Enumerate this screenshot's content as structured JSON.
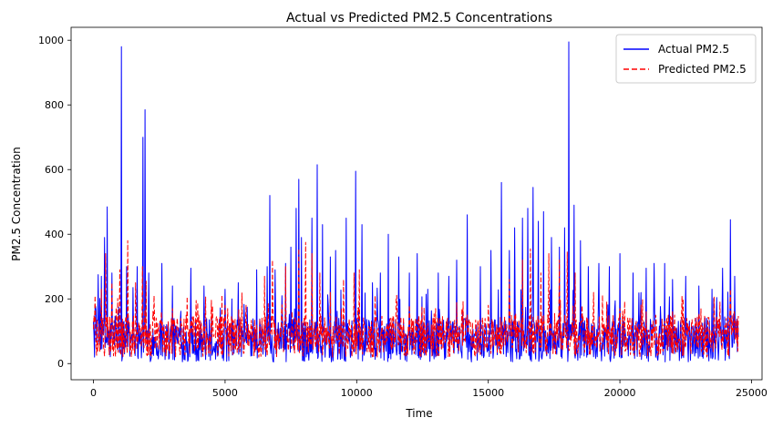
{
  "chart_data": {
    "type": "line",
    "title": "Actual vs Predicted PM2.5 Concentrations",
    "xlabel": "Time",
    "ylabel": "PM2.5 Concentration",
    "xlim": [
      -850,
      25400
    ],
    "ylim": [
      -50,
      1040
    ],
    "x_ticks": [
      0,
      5000,
      10000,
      15000,
      20000,
      25000
    ],
    "y_ticks": [
      0,
      200,
      400,
      600,
      800,
      1000
    ],
    "grid": false,
    "legend_position": "top-right",
    "n_points": 24500,
    "series": [
      {
        "name": "Actual PM2.5",
        "color": "#0000ff",
        "style": "solid",
        "approx_range": [
          0,
          995
        ],
        "notable_points": [
          [
            60,
            180
          ],
          [
            180,
            275
          ],
          [
            300,
            270
          ],
          [
            420,
            390
          ],
          [
            510,
            485
          ],
          [
            700,
            280
          ],
          [
            1050,
            980
          ],
          [
            1250,
            300
          ],
          [
            1500,
            235
          ],
          [
            1650,
            300
          ],
          [
            1880,
            700
          ],
          [
            1950,
            785
          ],
          [
            2100,
            280
          ],
          [
            2600,
            310
          ],
          [
            3000,
            240
          ],
          [
            3700,
            295
          ],
          [
            4200,
            240
          ],
          [
            5000,
            230
          ],
          [
            5500,
            250
          ],
          [
            6200,
            290
          ],
          [
            6600,
            300
          ],
          [
            6700,
            520
          ],
          [
            6900,
            290
          ],
          [
            7300,
            310
          ],
          [
            7500,
            360
          ],
          [
            7700,
            480
          ],
          [
            7800,
            570
          ],
          [
            7900,
            390
          ],
          [
            8300,
            450
          ],
          [
            8500,
            615
          ],
          [
            8700,
            430
          ],
          [
            9000,
            330
          ],
          [
            9200,
            350
          ],
          [
            9600,
            450
          ],
          [
            9950,
            595
          ],
          [
            10200,
            430
          ],
          [
            10600,
            250
          ],
          [
            10900,
            280
          ],
          [
            11200,
            400
          ],
          [
            11600,
            330
          ],
          [
            12000,
            280
          ],
          [
            12300,
            340
          ],
          [
            12700,
            230
          ],
          [
            13100,
            280
          ],
          [
            13500,
            270
          ],
          [
            13800,
            320
          ],
          [
            14200,
            460
          ],
          [
            14700,
            300
          ],
          [
            15100,
            350
          ],
          [
            15500,
            560
          ],
          [
            15800,
            350
          ],
          [
            16000,
            420
          ],
          [
            16300,
            450
          ],
          [
            16500,
            480
          ],
          [
            16700,
            545
          ],
          [
            16900,
            440
          ],
          [
            17100,
            470
          ],
          [
            17400,
            390
          ],
          [
            17700,
            360
          ],
          [
            17900,
            420
          ],
          [
            18050,
            995
          ],
          [
            18250,
            490
          ],
          [
            18500,
            380
          ],
          [
            18800,
            300
          ],
          [
            19200,
            310
          ],
          [
            19600,
            300
          ],
          [
            20000,
            340
          ],
          [
            20500,
            280
          ],
          [
            21000,
            295
          ],
          [
            21300,
            310
          ],
          [
            21700,
            310
          ],
          [
            22000,
            260
          ],
          [
            22500,
            270
          ],
          [
            23000,
            240
          ],
          [
            23500,
            230
          ],
          [
            23900,
            295
          ],
          [
            24200,
            445
          ],
          [
            24350,
            270
          ]
        ]
      },
      {
        "name": "Predicted PM2.5",
        "color": "#ff0000",
        "style": "dashed",
        "approx_range": [
          10,
          385
        ],
        "notable_points": [
          [
            60,
            210
          ],
          [
            300,
            230
          ],
          [
            450,
            340
          ],
          [
            700,
            250
          ],
          [
            1000,
            290
          ],
          [
            1300,
            380
          ],
          [
            1600,
            250
          ],
          [
            1850,
            300
          ],
          [
            2000,
            255
          ],
          [
            2300,
            210
          ],
          [
            3000,
            170
          ],
          [
            4000,
            150
          ],
          [
            5000,
            180
          ],
          [
            5800,
            180
          ],
          [
            6500,
            270
          ],
          [
            6800,
            320
          ],
          [
            7300,
            300
          ],
          [
            7800,
            355
          ],
          [
            8050,
            375
          ],
          [
            8300,
            340
          ],
          [
            8600,
            280
          ],
          [
            9000,
            220
          ],
          [
            9500,
            260
          ],
          [
            9900,
            280
          ],
          [
            10100,
            290
          ],
          [
            10700,
            210
          ],
          [
            11500,
            200
          ],
          [
            12000,
            180
          ],
          [
            13000,
            170
          ],
          [
            14000,
            170
          ],
          [
            15000,
            180
          ],
          [
            15800,
            260
          ],
          [
            16300,
            320
          ],
          [
            16600,
            355
          ],
          [
            17000,
            280
          ],
          [
            17300,
            340
          ],
          [
            17700,
            320
          ],
          [
            18000,
            345
          ],
          [
            18300,
            280
          ],
          [
            19000,
            220
          ],
          [
            19500,
            190
          ],
          [
            20000,
            170
          ],
          [
            21000,
            160
          ],
          [
            22000,
            160
          ],
          [
            23000,
            155
          ],
          [
            23800,
            190
          ],
          [
            24200,
            230
          ]
        ]
      }
    ]
  }
}
